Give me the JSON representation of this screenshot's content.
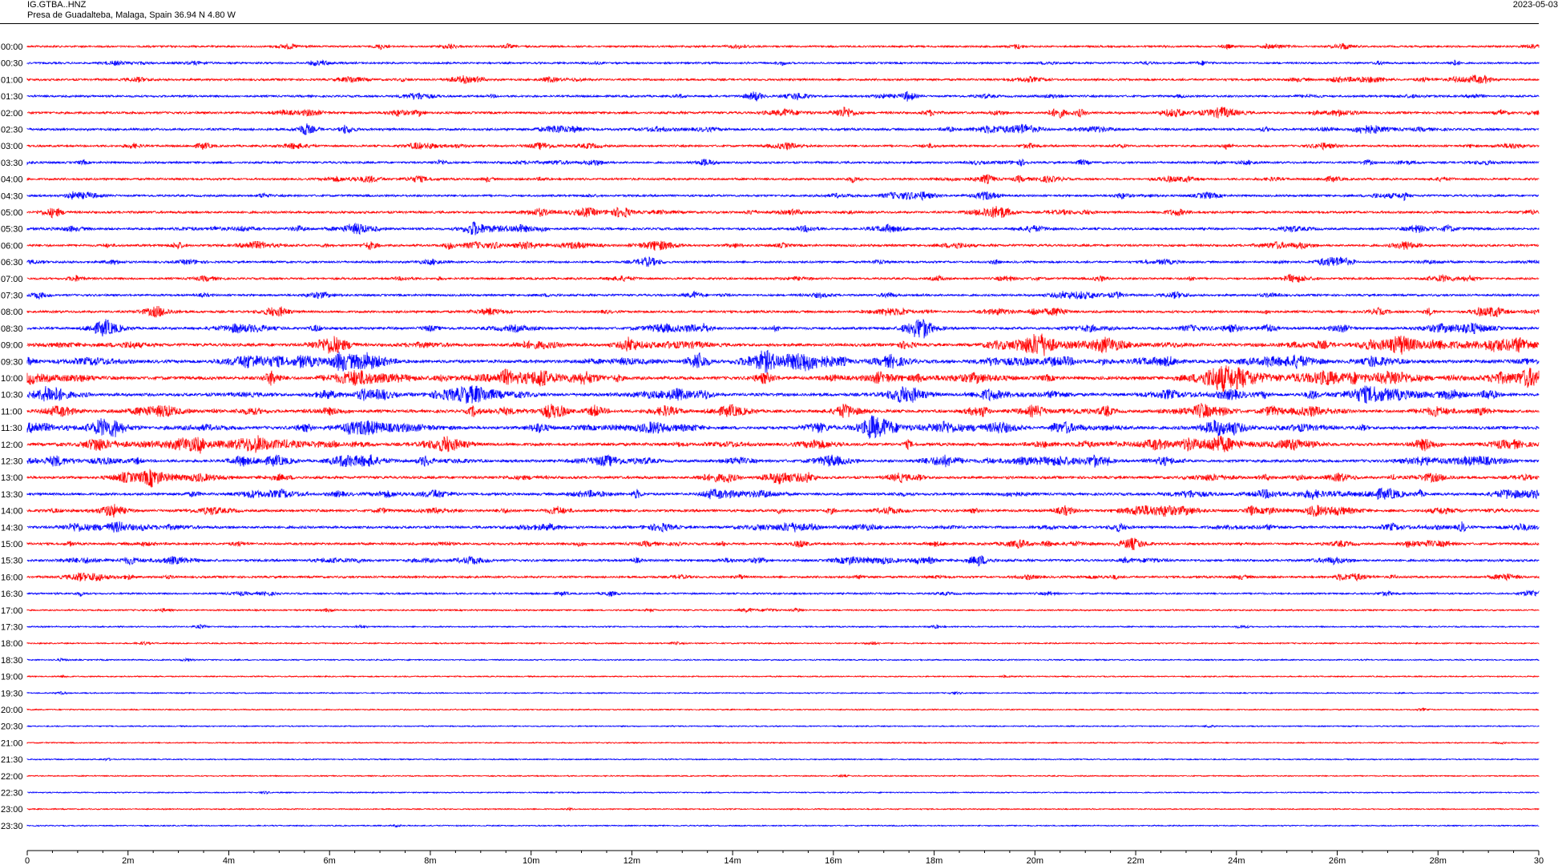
{
  "header": {
    "station_code": "IG.GTBA..HNZ",
    "station_location": "Presa de Guadalteba, Malaga, Spain  36.94 N 4.80 W",
    "date": "2023-05-03"
  },
  "colors": {
    "even_rows": "#ff0000",
    "odd_rows": "#0000ff",
    "axis": "#000000"
  },
  "chart_data": {
    "type": "line",
    "title": "",
    "xlabel": "",
    "ylabel": "",
    "x_unit": "minutes",
    "xlim": [
      0,
      30
    ],
    "x_ticks": [
      "0",
      "2m",
      "4m",
      "6m",
      "8m",
      "10m",
      "12m",
      "14m",
      "16m",
      "18m",
      "20m",
      "22m",
      "24m",
      "26m",
      "28m",
      "30"
    ],
    "row_duration_minutes": 30,
    "grid": false,
    "series": [
      {
        "name": "00:00",
        "color": "red",
        "activity": 0.3
      },
      {
        "name": "00:30",
        "color": "blue",
        "activity": 0.3
      },
      {
        "name": "01:00",
        "color": "red",
        "activity": 0.4
      },
      {
        "name": "01:30",
        "color": "blue",
        "activity": 0.4
      },
      {
        "name": "02:00",
        "color": "red",
        "activity": 0.5
      },
      {
        "name": "02:30",
        "color": "blue",
        "activity": 0.5
      },
      {
        "name": "03:00",
        "color": "red",
        "activity": 0.4
      },
      {
        "name": "03:30",
        "color": "blue",
        "activity": 0.4
      },
      {
        "name": "04:00",
        "color": "red",
        "activity": 0.4
      },
      {
        "name": "04:30",
        "color": "blue",
        "activity": 0.4
      },
      {
        "name": "05:00",
        "color": "red",
        "activity": 0.5
      },
      {
        "name": "05:30",
        "color": "blue",
        "activity": 0.5
      },
      {
        "name": "06:00",
        "color": "red",
        "activity": 0.5
      },
      {
        "name": "06:30",
        "color": "blue",
        "activity": 0.4
      },
      {
        "name": "07:00",
        "color": "red",
        "activity": 0.4
      },
      {
        "name": "07:30",
        "color": "blue",
        "activity": 0.4
      },
      {
        "name": "08:00",
        "color": "red",
        "activity": 0.5
      },
      {
        "name": "08:30",
        "color": "blue",
        "activity": 0.6
      },
      {
        "name": "09:00",
        "color": "red",
        "activity": 0.8
      },
      {
        "name": "09:30",
        "color": "blue",
        "activity": 0.9
      },
      {
        "name": "10:00",
        "color": "red",
        "activity": 0.9
      },
      {
        "name": "10:30",
        "color": "blue",
        "activity": 0.8
      },
      {
        "name": "11:00",
        "color": "red",
        "activity": 0.8
      },
      {
        "name": "11:30",
        "color": "blue",
        "activity": 0.8
      },
      {
        "name": "12:00",
        "color": "red",
        "activity": 0.8
      },
      {
        "name": "12:30",
        "color": "blue",
        "activity": 0.7
      },
      {
        "name": "13:00",
        "color": "red",
        "activity": 0.6
      },
      {
        "name": "13:30",
        "color": "blue",
        "activity": 0.6
      },
      {
        "name": "14:00",
        "color": "red",
        "activity": 0.6
      },
      {
        "name": "14:30",
        "color": "blue",
        "activity": 0.6
      },
      {
        "name": "15:00",
        "color": "red",
        "activity": 0.5
      },
      {
        "name": "15:30",
        "color": "blue",
        "activity": 0.5
      },
      {
        "name": "16:00",
        "color": "red",
        "activity": 0.4
      },
      {
        "name": "16:30",
        "color": "blue",
        "activity": 0.25
      },
      {
        "name": "17:00",
        "color": "red",
        "activity": 0.15
      },
      {
        "name": "17:30",
        "color": "blue",
        "activity": 0.1
      },
      {
        "name": "18:00",
        "color": "red",
        "activity": 0.08
      },
      {
        "name": "18:30",
        "color": "blue",
        "activity": 0.06
      },
      {
        "name": "19:00",
        "color": "red",
        "activity": 0.04
      },
      {
        "name": "19:30",
        "color": "blue",
        "activity": 0.04
      },
      {
        "name": "20:00",
        "color": "red",
        "activity": 0.03
      },
      {
        "name": "20:30",
        "color": "blue",
        "activity": 0.03
      },
      {
        "name": "21:00",
        "color": "red",
        "activity": 0.03
      },
      {
        "name": "21:30",
        "color": "blue",
        "activity": 0.03
      },
      {
        "name": "22:00",
        "color": "red",
        "activity": 0.03
      },
      {
        "name": "22:30",
        "color": "blue",
        "activity": 0.03
      },
      {
        "name": "23:00",
        "color": "red",
        "activity": 0.03
      },
      {
        "name": "23:30",
        "color": "blue",
        "activity": 0.03
      }
    ]
  }
}
